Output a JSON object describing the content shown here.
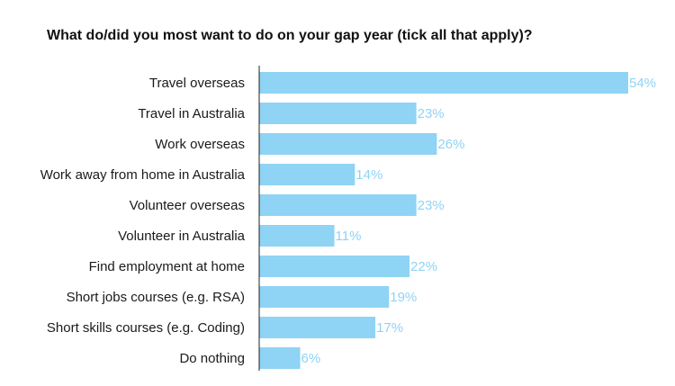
{
  "chart_data": {
    "type": "bar",
    "orientation": "horizontal",
    "title": "What do/did you most want to do on your gap year (tick all that apply)?",
    "categories": [
      "Travel overseas",
      "Travel in Australia",
      "Work overseas",
      "Work away from home in Australia",
      "Volunteer overseas",
      "Volunteer in Australia",
      "Find employment at home",
      "Short jobs courses (e.g. RSA)",
      "Short skills courses (e.g. Coding)",
      "Do nothing"
    ],
    "values": [
      54,
      23,
      26,
      14,
      23,
      11,
      22,
      19,
      17,
      6
    ],
    "value_labels": [
      "54%",
      "23%",
      "26%",
      "14%",
      "23%",
      "11%",
      "22%",
      "19%",
      "17%",
      "6%"
    ],
    "xlim": [
      0,
      54
    ],
    "grid": false,
    "colors": {
      "bar": "#8fd3f5",
      "value_label": "#8fd3f5",
      "axis": "#222222",
      "text": "#1a1a1a"
    }
  }
}
